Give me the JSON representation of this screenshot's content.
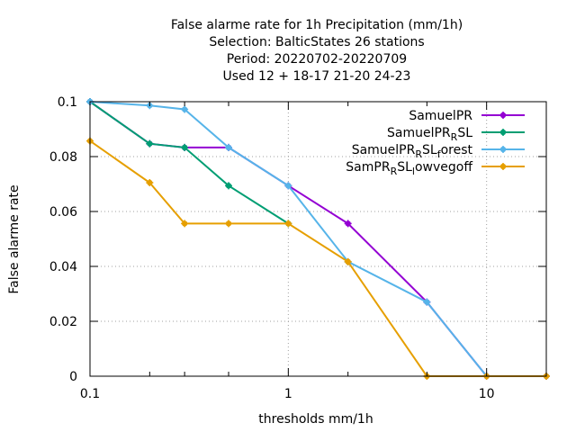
{
  "chart_data": {
    "type": "line",
    "title_lines": [
      "False alarme rate  for 1h Precipitation (mm/1h)",
      "Selection: BalticStates      26 stations",
      "Period: 20220702-20220709",
      "Used  12 + 18-17 21-20 24-23"
    ],
    "xlabel": "thresholds mm/1h",
    "ylabel": "False alarme rate",
    "xscale": "log",
    "xlim": [
      0.1,
      20
    ],
    "ylim": [
      0,
      0.1
    ],
    "x_ticks": [
      {
        "value": 0.1,
        "label": "0.1"
      },
      {
        "value": 1,
        "label": "1"
      },
      {
        "value": 10,
        "label": "10"
      }
    ],
    "x_minor_ticks": [
      0.2,
      0.3,
      0.5,
      2,
      5,
      20
    ],
    "y_ticks": [
      {
        "value": 0,
        "label": "0"
      },
      {
        "value": 0.02,
        "label": "0.02"
      },
      {
        "value": 0.04,
        "label": "0.04"
      },
      {
        "value": 0.06,
        "label": "0.06"
      },
      {
        "value": 0.08,
        "label": "0.08"
      },
      {
        "value": 0.1,
        "label": "0.1"
      }
    ],
    "grid": true,
    "legend_position": "top-right",
    "series": [
      {
        "name": "SamuelPR",
        "legend_base": "SamuelPR",
        "legend_segments": [],
        "color": "#9400d3",
        "points": [
          [
            0.1,
            0.1
          ],
          [
            0.2,
            0.0847
          ],
          [
            0.3,
            0.0833
          ],
          [
            0.5,
            0.0833
          ],
          [
            1,
            0.0694
          ],
          [
            2,
            0.0556
          ],
          [
            5,
            0.027
          ],
          [
            10,
            0
          ],
          [
            20,
            0
          ]
        ]
      },
      {
        "name": "SamuelPR_RSL",
        "legend_base": "SamuelPR",
        "legend_segments": [
          [
            "R",
            true
          ],
          [
            "SL",
            false
          ]
        ],
        "color": "#009e73",
        "points": [
          [
            0.1,
            0.1
          ],
          [
            0.2,
            0.0847
          ],
          [
            0.3,
            0.0833
          ],
          [
            0.5,
            0.0694
          ],
          [
            1,
            0.0556
          ]
        ]
      },
      {
        "name": "SamuelPR_RSL_forest",
        "legend_base": "SamuelPR",
        "legend_segments": [
          [
            "R",
            true
          ],
          [
            "SL",
            false
          ],
          [
            "f",
            true
          ],
          [
            "orest",
            false
          ]
        ],
        "color": "#56b4e9",
        "points": [
          [
            0.1,
            0.1
          ],
          [
            0.2,
            0.0986
          ],
          [
            0.3,
            0.0972
          ],
          [
            0.5,
            0.0833
          ],
          [
            1,
            0.0694
          ],
          [
            2,
            0.0417
          ],
          [
            5,
            0.027
          ],
          [
            10,
            0
          ],
          [
            20,
            0
          ]
        ]
      },
      {
        "name": "SamPR_RSL_lowvegoff",
        "legend_base": "SamPR",
        "legend_segments": [
          [
            "R",
            true
          ],
          [
            "SL",
            false
          ],
          [
            "l",
            true
          ],
          [
            "owvegoff",
            false
          ]
        ],
        "color": "#e69f00",
        "points": [
          [
            0.1,
            0.0857
          ],
          [
            0.2,
            0.0705
          ],
          [
            0.3,
            0.0556
          ],
          [
            0.5,
            0.0556
          ],
          [
            1,
            0.0556
          ],
          [
            2,
            0.0417
          ],
          [
            5,
            0
          ],
          [
            10,
            0
          ],
          [
            20,
            0
          ]
        ]
      }
    ]
  }
}
